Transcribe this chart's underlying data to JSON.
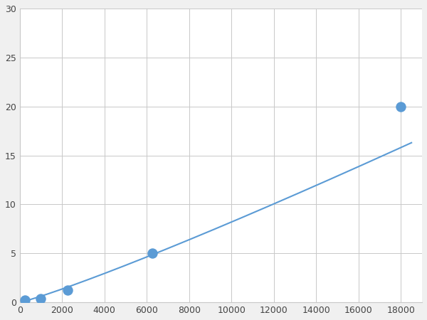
{
  "x_points": [
    250,
    1000,
    2250,
    6250,
    18000
  ],
  "y_points": [
    0.2,
    0.4,
    1.25,
    5.0,
    20.0
  ],
  "line_color": "#5b9bd5",
  "marker_color": "#5b9bd5",
  "marker_size": 6,
  "line_width": 1.5,
  "xlim": [
    0,
    19000
  ],
  "ylim": [
    0,
    30
  ],
  "xticks": [
    0,
    2000,
    4000,
    6000,
    8000,
    10000,
    12000,
    14000,
    16000,
    18000
  ],
  "yticks": [
    0,
    5,
    10,
    15,
    20,
    25,
    30
  ],
  "grid_color": "#c8c8c8",
  "bg_color": "#ffffff",
  "fig_bg_color": "#f0f0f0"
}
